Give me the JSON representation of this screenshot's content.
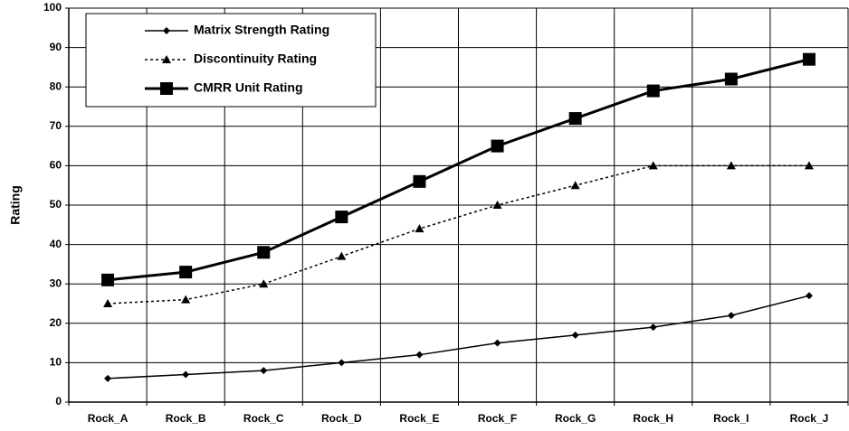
{
  "chart_data": {
    "type": "line",
    "y_label": "Rating",
    "categories": [
      "Rock_A",
      "Rock_B",
      "Rock_C",
      "Rock_D",
      "Rock_E",
      "Rock_F",
      "Rock_G",
      "Rock_H",
      "Rock_I",
      "Rock_J"
    ],
    "series": [
      {
        "name": "Matrix Strength Rating",
        "color": "#000000",
        "marker": "diamond",
        "line_style": "solid",
        "values": [
          6,
          7,
          8,
          10,
          12,
          15,
          17,
          19,
          22,
          27
        ]
      },
      {
        "name": "Discontinuity Rating",
        "color": "#000000",
        "marker": "triangle",
        "line_style": "dashed",
        "values": [
          25,
          26,
          30,
          37,
          44,
          50,
          55,
          60,
          60,
          60
        ]
      },
      {
        "name": "CMRR Unit Rating",
        "color": "#000000",
        "marker": "square",
        "line_style": "thick",
        "values": [
          31,
          33,
          38,
          47,
          56,
          65,
          72,
          79,
          82,
          87
        ]
      }
    ],
    "ylim": [
      0,
      100
    ],
    "yticks": [
      0,
      10,
      20,
      30,
      40,
      50,
      60,
      70,
      80,
      90,
      100
    ],
    "grid": true,
    "legend": "upper left"
  }
}
